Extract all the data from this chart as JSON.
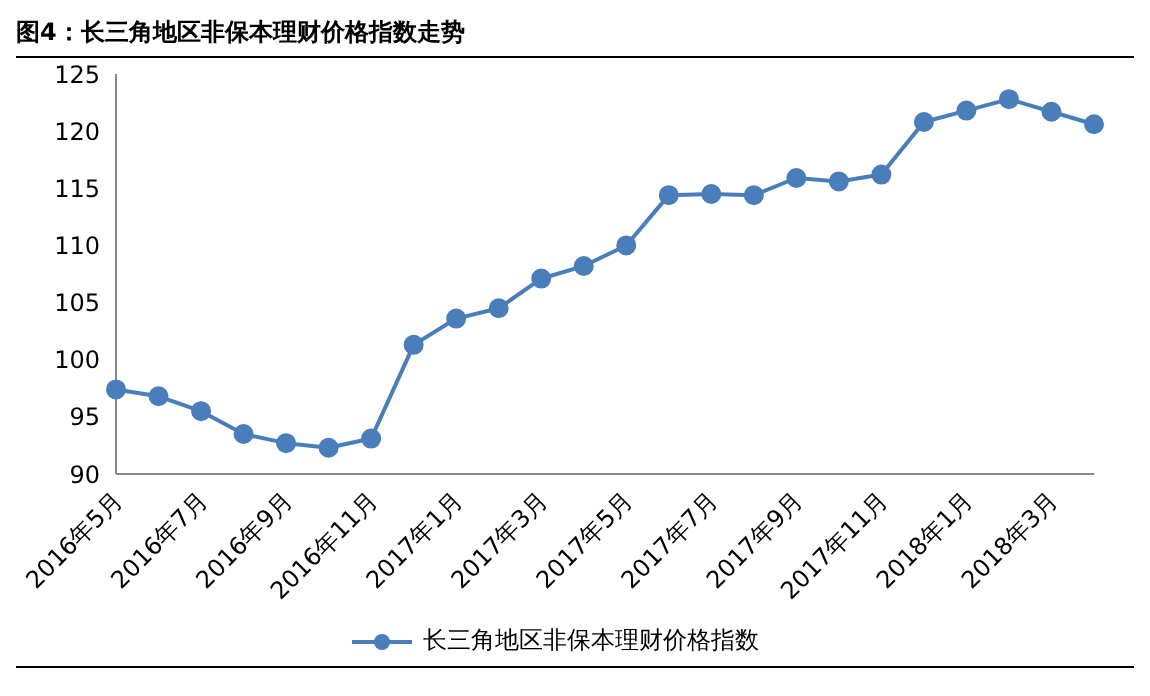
{
  "chart_data": {
    "type": "line",
    "title": "图4：长三角地区非保本理财价格指数走势",
    "categories": [
      "2016年5月",
      null,
      "2016年7月",
      null,
      "2016年9月",
      null,
      "2016年11月",
      null,
      "2017年1月",
      null,
      "2017年3月",
      null,
      "2017年5月",
      null,
      "2017年7月",
      null,
      "2017年9月",
      null,
      "2017年11月",
      null,
      "2018年1月",
      null,
      "2018年3月",
      null
    ],
    "series": [
      {
        "name": "长三角地区非保本理财价格指数",
        "color": "#4a7ebb",
        "values": [
          97.4,
          96.8,
          95.5,
          93.5,
          92.7,
          92.3,
          93.1,
          101.3,
          103.6,
          104.5,
          107.1,
          108.2,
          110.0,
          114.4,
          114.5,
          114.4,
          115.9,
          115.6,
          116.2,
          120.8,
          121.8,
          122.8,
          121.7,
          120.6
        ]
      }
    ],
    "ylim": [
      90,
      125
    ],
    "yticks": [
      90,
      95,
      100,
      105,
      110,
      115,
      120,
      125
    ],
    "grid": false,
    "legend": "bottom",
    "marker": "circle",
    "line_style": "solid"
  }
}
